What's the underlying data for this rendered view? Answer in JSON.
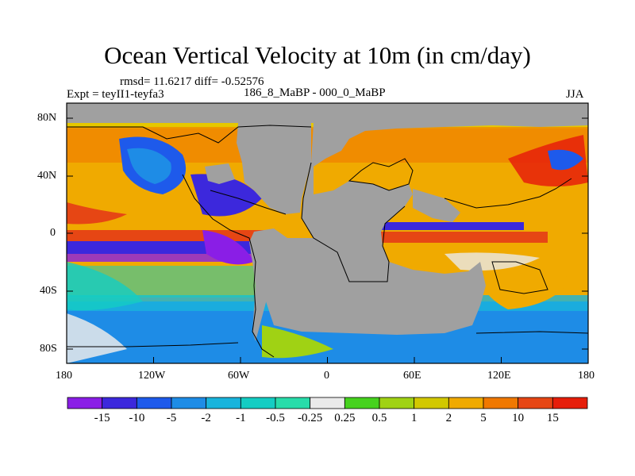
{
  "title": "Ocean Vertical Velocity at 10m (in cm/day)",
  "stats": "rmsd= 11.6217 diff= -0.52576",
  "expt": "Expt = teyII1-teyfa3",
  "difference": "186_8_MaBP - 000_0_MaBP",
  "season": "JJA",
  "lat_ticks": [
    "80N",
    "40N",
    "0",
    "40S",
    "80S"
  ],
  "lon_ticks": [
    "180",
    "120W",
    "60W",
    "0",
    "60E",
    "120E",
    "180"
  ],
  "colorbar": {
    "labels": [
      "-15",
      "-10",
      "-5",
      "-2",
      "-1",
      "-0.5",
      "-0.25",
      "0.25",
      "0.5",
      "1",
      "2",
      "5",
      "10",
      "15"
    ],
    "colors": [
      "#8a1ee6",
      "#3c28dc",
      "#1e5aeb",
      "#1e8ce6",
      "#19b4dc",
      "#14cdc3",
      "#28dcaa",
      "#eaeaea",
      "#46d21e",
      "#a0d214",
      "#d2c800",
      "#f0aa00",
      "#f07800",
      "#e64614",
      "#e61e0a"
    ]
  },
  "land_color": "#a0a0a0"
}
